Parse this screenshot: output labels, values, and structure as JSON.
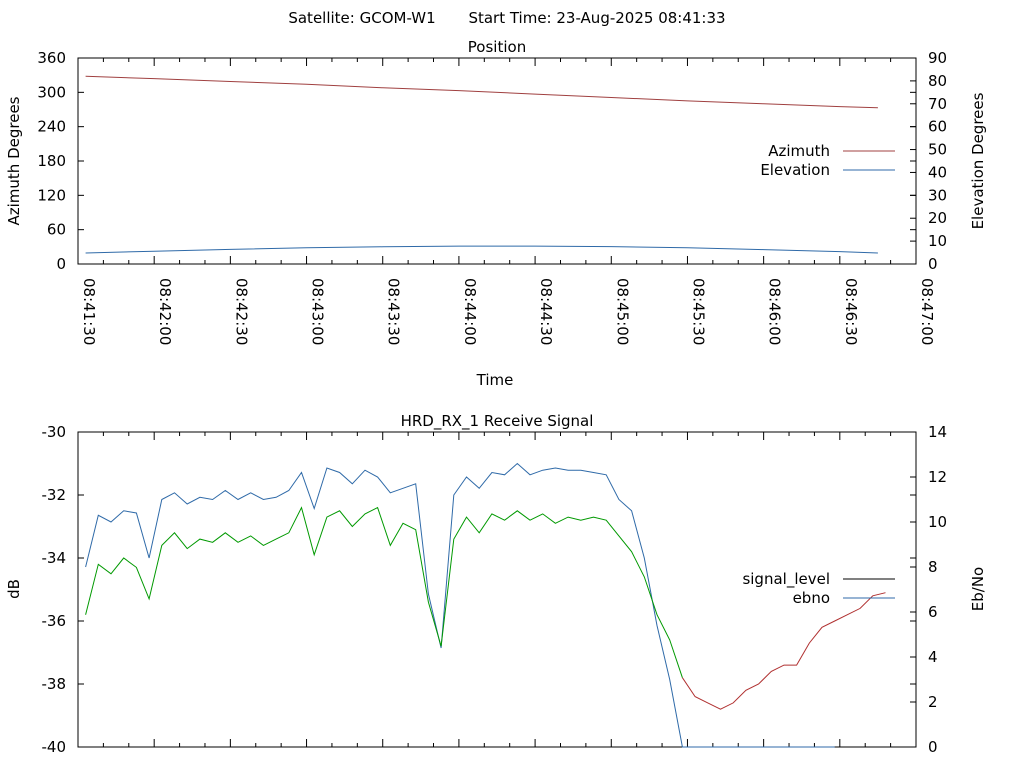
{
  "header": {
    "satellite_label": "Satellite: GCOM-W1",
    "start_time_label": "Start Time: 23-Aug-2025 08:41:33"
  },
  "colors": {
    "azimuth": "#a04040",
    "elevation": "#2f6aa8",
    "signal_level_legend": "#000000",
    "signal_level_trace": "#009900",
    "signal_level_trace_low": "#b03030",
    "ebno": "#2f6aa8"
  },
  "chart_data": [
    {
      "type": "line",
      "title": "Position",
      "xlabel": "Time",
      "ylabel": "Azimuth Degrees",
      "y2label": "Elevation Degrees",
      "xlim_seconds": [
        5490,
        5820
      ],
      "ylim": [
        0,
        360
      ],
      "y2lim": [
        0,
        90
      ],
      "x_ticks": [
        "08:41:30",
        "08:42:00",
        "08:42:30",
        "08:43:00",
        "08:43:30",
        "08:44:00",
        "08:44:30",
        "08:45:00",
        "08:45:30",
        "08:46:00",
        "08:46:30",
        "08:47:00"
      ],
      "y_ticks": [
        "0",
        "60",
        "120",
        "180",
        "240",
        "300",
        "360"
      ],
      "y2_ticks": [
        "0",
        "10",
        "20",
        "30",
        "40",
        "50",
        "60",
        "70",
        "80",
        "90"
      ],
      "legend_position": "right",
      "series": [
        {
          "name": "Azimuth",
          "axis": "y",
          "x": [
            5493,
            5520,
            5550,
            5580,
            5610,
            5640,
            5670,
            5700,
            5730,
            5760,
            5790,
            5805
          ],
          "values": [
            328,
            324,
            319,
            314,
            308,
            303,
            297,
            291,
            285,
            280,
            275,
            273
          ]
        },
        {
          "name": "Elevation",
          "axis": "y2",
          "x": [
            5493,
            5520,
            5550,
            5580,
            5610,
            5640,
            5670,
            5700,
            5730,
            5760,
            5790,
            5805
          ],
          "values": [
            4.8,
            5.6,
            6.4,
            7.1,
            7.5,
            7.8,
            7.8,
            7.6,
            7.1,
            6.3,
            5.4,
            4.8
          ]
        }
      ]
    },
    {
      "type": "line",
      "title": "HRD_RX_1 Receive Signal",
      "ylabel": "dB",
      "y2label": "Eb/No",
      "xlim_seconds": [
        5490,
        5820
      ],
      "ylim": [
        -40,
        -30
      ],
      "y2lim": [
        0,
        14
      ],
      "y_ticks": [
        "-40",
        "-38",
        "-36",
        "-34",
        "-32",
        "-30"
      ],
      "y2_ticks": [
        "0",
        "2",
        "4",
        "6",
        "8",
        "10",
        "12",
        "14"
      ],
      "legend_position": "right",
      "series": [
        {
          "name": "signal_level",
          "axis": "y",
          "x": [
            5493,
            5498,
            5503,
            5508,
            5513,
            5518,
            5523,
            5528,
            5533,
            5538,
            5543,
            5548,
            5553,
            5558,
            5563,
            5568,
            5573,
            5578,
            5583,
            5588,
            5593,
            5598,
            5603,
            5608,
            5613,
            5618,
            5623,
            5628,
            5633,
            5638,
            5643,
            5648,
            5653,
            5658,
            5663,
            5668,
            5673,
            5678,
            5683,
            5688,
            5693,
            5698,
            5703,
            5708,
            5713,
            5718,
            5723,
            5728,
            5733,
            5738,
            5743,
            5748,
            5753,
            5758,
            5763,
            5768,
            5773,
            5778,
            5783,
            5788,
            5793,
            5798,
            5803,
            5808
          ],
          "values": [
            -35.8,
            -34.2,
            -34.5,
            -34.0,
            -34.3,
            -35.3,
            -33.6,
            -33.2,
            -33.7,
            -33.4,
            -33.5,
            -33.2,
            -33.5,
            -33.3,
            -33.6,
            -33.4,
            -33.2,
            -32.4,
            -33.9,
            -32.7,
            -32.5,
            -33.0,
            -32.6,
            -32.4,
            -33.6,
            -32.9,
            -33.1,
            -35.4,
            -36.8,
            -33.4,
            -32.7,
            -33.2,
            -32.6,
            -32.8,
            -32.5,
            -32.8,
            -32.6,
            -32.9,
            -32.7,
            -32.8,
            -32.7,
            -32.8,
            -33.3,
            -33.8,
            -34.6,
            -35.8,
            -36.6,
            -37.8,
            -38.4,
            -38.6,
            -38.8,
            -38.6,
            -38.2,
            -38.0,
            -37.6,
            -37.4,
            -37.4,
            -36.7,
            -36.2,
            -36.0,
            -35.8,
            -35.6,
            -35.2,
            -35.1
          ]
        },
        {
          "name": "ebno",
          "axis": "y2",
          "x": [
            5493,
            5498,
            5503,
            5508,
            5513,
            5518,
            5523,
            5528,
            5533,
            5538,
            5543,
            5548,
            5553,
            5558,
            5563,
            5568,
            5573,
            5578,
            5583,
            5588,
            5593,
            5598,
            5603,
            5608,
            5613,
            5618,
            5623,
            5628,
            5633,
            5638,
            5643,
            5648,
            5653,
            5658,
            5663,
            5668,
            5673,
            5678,
            5683,
            5688,
            5693,
            5698,
            5703,
            5708,
            5713,
            5718,
            5723,
            5728,
            5733,
            5738,
            5743,
            5748,
            5753,
            5758,
            5763,
            5768,
            5773,
            5778,
            5783,
            5788
          ],
          "values": [
            8.0,
            10.3,
            10.0,
            10.5,
            10.4,
            8.4,
            11.0,
            11.3,
            10.8,
            11.1,
            11.0,
            11.4,
            11.0,
            11.3,
            11.0,
            11.1,
            11.4,
            12.2,
            10.6,
            12.4,
            12.2,
            11.7,
            12.3,
            12.0,
            11.3,
            11.5,
            11.7,
            6.8,
            4.4,
            11.2,
            12.0,
            11.5,
            12.2,
            12.1,
            12.6,
            12.1,
            12.3,
            12.4,
            12.3,
            12.3,
            12.2,
            12.1,
            11.0,
            10.5,
            8.4,
            5.4,
            3.0,
            0.0,
            0.0,
            0.0,
            0.0,
            0.0,
            0.0,
            0.0,
            0.0,
            0.0,
            0.0,
            0.0,
            0.0,
            0.0
          ]
        }
      ]
    }
  ]
}
